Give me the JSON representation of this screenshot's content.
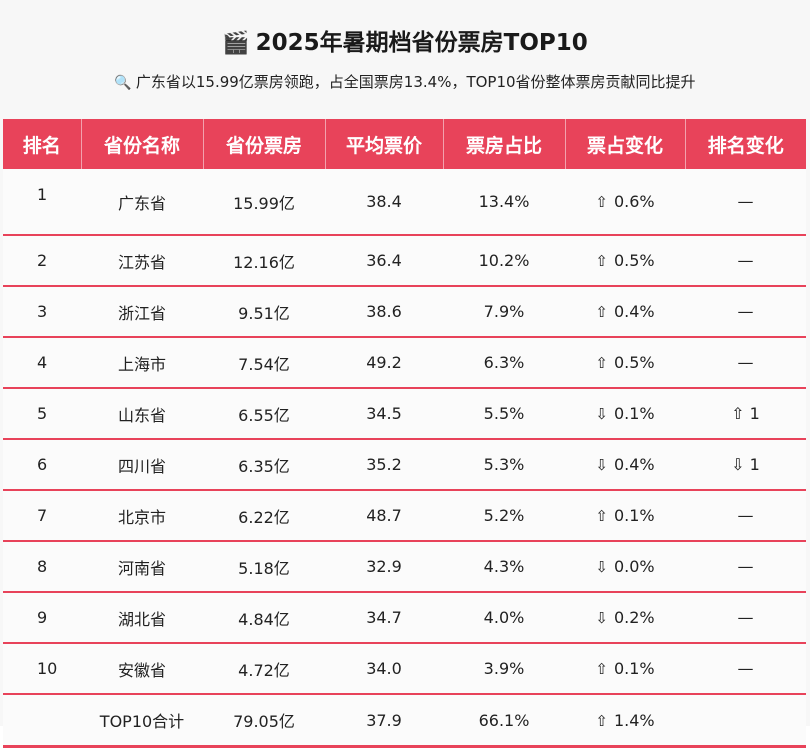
{
  "header": {
    "title_icon": "🎬",
    "title": "2025年暑期档省份票房TOP10",
    "subtitle_icon": "🔍",
    "subtitle": "广东省以15.99亿票房领跑，占全国票房13.4%，TOP10省份整体票房贡献同比提升"
  },
  "table": {
    "columns": [
      "排名",
      "省份名称",
      "省份票房",
      "平均票价",
      "票房占比",
      "票占变化",
      "排名变化"
    ],
    "rows": [
      {
        "rank": "1",
        "province": "广东省",
        "box_office": "15.99亿",
        "avg_price": "38.4",
        "share": "13.4%",
        "share_change": "0.6%",
        "share_dir": "⇧",
        "rank_change": "—"
      },
      {
        "rank": "2",
        "province": "江苏省",
        "box_office": "12.16亿",
        "avg_price": "36.4",
        "share": "10.2%",
        "share_change": "0.5%",
        "share_dir": "⇧",
        "rank_change": "—"
      },
      {
        "rank": "3",
        "province": "浙江省",
        "box_office": "9.51亿",
        "avg_price": "38.6",
        "share": "7.9%",
        "share_change": "0.4%",
        "share_dir": "⇧",
        "rank_change": "—"
      },
      {
        "rank": "4",
        "province": "上海市",
        "box_office": "7.54亿",
        "avg_price": "49.2",
        "share": "6.3%",
        "share_change": "0.5%",
        "share_dir": "⇧",
        "rank_change": "—"
      },
      {
        "rank": "5",
        "province": "山东省",
        "box_office": "6.55亿",
        "avg_price": "34.5",
        "share": "5.5%",
        "share_change": "0.1%",
        "share_dir": "⇩",
        "rank_change": "⇧ 1"
      },
      {
        "rank": "6",
        "province": "四川省",
        "box_office": "6.35亿",
        "avg_price": "35.2",
        "share": "5.3%",
        "share_change": "0.4%",
        "share_dir": "⇩",
        "rank_change": "⇩ 1"
      },
      {
        "rank": "7",
        "province": "北京市",
        "box_office": "6.22亿",
        "avg_price": "48.7",
        "share": "5.2%",
        "share_change": "0.1%",
        "share_dir": "⇧",
        "rank_change": "—"
      },
      {
        "rank": "8",
        "province": "河南省",
        "box_office": "5.18亿",
        "avg_price": "32.9",
        "share": "4.3%",
        "share_change": "0.0%",
        "share_dir": "⇩",
        "rank_change": "—"
      },
      {
        "rank": "9",
        "province": "湖北省",
        "box_office": "4.84亿",
        "avg_price": "34.7",
        "share": "4.0%",
        "share_change": "0.2%",
        "share_dir": "⇩",
        "rank_change": "—"
      },
      {
        "rank": "10",
        "province": "安徽省",
        "box_office": "4.72亿",
        "avg_price": "34.0",
        "share": "3.9%",
        "share_change": "0.1%",
        "share_dir": "⇧",
        "rank_change": "—"
      }
    ],
    "total": {
      "label": "TOP10合计",
      "box_office": "79.05亿",
      "avg_price": "37.9",
      "share": "66.1%",
      "share_dir": "⇧",
      "share_change": "1.4%"
    }
  },
  "colors": {
    "accent": "#e8435a",
    "background": "#f7f7f7"
  }
}
